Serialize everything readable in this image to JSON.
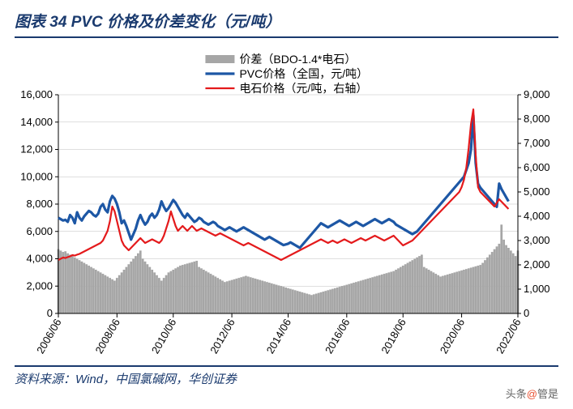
{
  "title": "图表 34   PVC 价格及价差变化（元/吨）",
  "source": "资料来源：Wind，中国氯碱网，华创证券",
  "attribution_prefix": "头条",
  "attribution_at": "@",
  "attribution_name": "管是",
  "chart": {
    "type": "line+bar-dual-axis",
    "background_color": "#ffffff",
    "plot_border_color": "#000000",
    "plot_border_width": 1,
    "grid_color": "#bfbfbf",
    "grid_width": 0.6,
    "x_categories": [
      "2006/06",
      "2008/06",
      "2010/06",
      "2012/06",
      "2014/06",
      "2016/06",
      "2018/06",
      "2020/06",
      "2022/06"
    ],
    "x_tick_rotate": -60,
    "x_fontsize": 13,
    "y_left": {
      "min": 0,
      "max": 16000,
      "step": 2000,
      "fontsize": 13
    },
    "y_right": {
      "min": 0,
      "max": 9000,
      "step": 1000,
      "fontsize": 13
    },
    "legend": {
      "position": "top-center",
      "fontsize": 14,
      "items": [
        {
          "label": "价差（BDO-1.4*电石）",
          "type": "bar",
          "color": "#a6a6a6"
        },
        {
          "label": "PVC价格（全国，元/吨）",
          "type": "line",
          "color": "#1d57a5",
          "width": 3.2
        },
        {
          "label": "电石价格（元/吨，右轴）",
          "type": "line",
          "color": "#e41a1c",
          "width": 2.2
        }
      ]
    },
    "series_bar": {
      "name": "价差",
      "axis": "left",
      "color": "#a6a6a6",
      "data": [
        4700,
        4600,
        4500,
        4550,
        4400,
        4300,
        4200,
        4100,
        4000,
        3900,
        3800,
        3700,
        3600,
        3500,
        3400,
        3300,
        3200,
        3100,
        3000,
        2900,
        2800,
        2700,
        2600,
        2500,
        2400,
        2600,
        2800,
        3000,
        3200,
        3400,
        3600,
        3800,
        4000,
        4200,
        4400,
        4600,
        4000,
        3800,
        3600,
        3400,
        3200,
        3000,
        2800,
        2600,
        2400,
        2600,
        2800,
        3000,
        3100,
        3200,
        3300,
        3400,
        3500,
        3550,
        3600,
        3650,
        3700,
        3750,
        3800,
        3850,
        3400,
        3300,
        3200,
        3100,
        3000,
        2900,
        2800,
        2700,
        2600,
        2500,
        2400,
        2300,
        2350,
        2400,
        2450,
        2500,
        2550,
        2600,
        2650,
        2700,
        2750,
        2700,
        2650,
        2600,
        2550,
        2500,
        2450,
        2400,
        2350,
        2300,
        2250,
        2200,
        2150,
        2100,
        2050,
        2000,
        1950,
        1900,
        1850,
        1800,
        1750,
        1700,
        1650,
        1600,
        1550,
        1500,
        1450,
        1400,
        1350,
        1400,
        1450,
        1500,
        1550,
        1600,
        1650,
        1700,
        1750,
        1800,
        1850,
        1900,
        1950,
        2000,
        2050,
        2100,
        2150,
        2200,
        2250,
        2300,
        2350,
        2400,
        2450,
        2500,
        2550,
        2600,
        2650,
        2700,
        2750,
        2800,
        2850,
        2900,
        2950,
        3000,
        3050,
        3100,
        3200,
        3300,
        3400,
        3500,
        3600,
        3700,
        3800,
        3900,
        4000,
        4100,
        4200,
        4300,
        3400,
        3300,
        3200,
        3100,
        3000,
        2900,
        2800,
        2700,
        2750,
        2800,
        2850,
        2900,
        2950,
        3000,
        3050,
        3100,
        3150,
        3200,
        3250,
        3300,
        3350,
        3400,
        3450,
        3500,
        3550,
        3700,
        3900,
        4100,
        4300,
        4500,
        4700,
        4900,
        5100,
        6500,
        5400,
        5000,
        4800,
        4600,
        4400,
        4200,
        4600
      ]
    },
    "series_line_pvc": {
      "name": "PVC价格",
      "axis": "left",
      "color": "#1d57a5",
      "width": 3.2,
      "data": [
        7000,
        6900,
        6800,
        6850,
        6700,
        7200,
        7000,
        6600,
        7400,
        7000,
        6800,
        7100,
        7300,
        7500,
        7400,
        7200,
        7100,
        7300,
        7800,
        8000,
        7600,
        7400,
        8200,
        8600,
        8400,
        8000,
        7400,
        6600,
        6800,
        6400,
        5900,
        5400,
        5800,
        6200,
        6800,
        7200,
        6800,
        6500,
        6700,
        7100,
        7300,
        7000,
        7200,
        7600,
        8200,
        7800,
        7500,
        7700,
        8000,
        8300,
        8100,
        7800,
        7500,
        7200,
        7000,
        7300,
        7100,
        6900,
        6700,
        6800,
        7000,
        6900,
        6700,
        6600,
        6500,
        6600,
        6700,
        6600,
        6400,
        6300,
        6200,
        6100,
        6200,
        6300,
        6200,
        6100,
        6000,
        6100,
        6200,
        6300,
        6200,
        6100,
        6000,
        5900,
        5800,
        5700,
        5600,
        5500,
        5400,
        5500,
        5600,
        5500,
        5400,
        5300,
        5200,
        5100,
        5000,
        5050,
        5100,
        5200,
        5100,
        5000,
        4900,
        4800,
        5000,
        5200,
        5400,
        5600,
        5800,
        6000,
        6200,
        6400,
        6600,
        6500,
        6400,
        6300,
        6400,
        6500,
        6600,
        6700,
        6800,
        6700,
        6600,
        6500,
        6400,
        6500,
        6600,
        6700,
        6600,
        6500,
        6400,
        6500,
        6600,
        6700,
        6800,
        6900,
        6800,
        6700,
        6600,
        6700,
        6800,
        6900,
        6800,
        6700,
        6500,
        6400,
        6300,
        6200,
        6100,
        6000,
        5900,
        5800,
        5900,
        6000,
        6200,
        6400,
        6600,
        6800,
        7000,
        7200,
        7400,
        7600,
        7800,
        8000,
        8200,
        8400,
        8600,
        8800,
        9000,
        9200,
        9400,
        9600,
        9800,
        10000,
        10500,
        11000,
        12000,
        14500,
        11000,
        9500,
        9200,
        9000,
        8800,
        8600,
        8400,
        8200,
        8000,
        7800,
        9500,
        9100,
        8800,
        8500,
        8200
      ]
    },
    "series_line_cac2": {
      "name": "电石价格",
      "axis": "right",
      "color": "#e41a1c",
      "width": 2.2,
      "data": [
        2200,
        2250,
        2300,
        2280,
        2320,
        2350,
        2400,
        2380,
        2420,
        2450,
        2500,
        2550,
        2600,
        2650,
        2700,
        2750,
        2800,
        2850,
        2900,
        3000,
        3200,
        3400,
        3800,
        4400,
        4200,
        3800,
        3400,
        3000,
        2800,
        2700,
        2600,
        2700,
        2800,
        2900,
        3000,
        3100,
        3000,
        2900,
        2950,
        3000,
        3050,
        3000,
        2950,
        2900,
        3000,
        3200,
        3500,
        3800,
        4200,
        3900,
        3600,
        3400,
        3500,
        3600,
        3500,
        3400,
        3500,
        3600,
        3500,
        3400,
        3450,
        3500,
        3450,
        3400,
        3350,
        3300,
        3250,
        3200,
        3250,
        3300,
        3250,
        3200,
        3150,
        3100,
        3050,
        3000,
        2950,
        2900,
        2850,
        2800,
        2850,
        2900,
        2850,
        2800,
        2750,
        2700,
        2650,
        2600,
        2550,
        2500,
        2450,
        2400,
        2350,
        2300,
        2250,
        2200,
        2250,
        2300,
        2350,
        2400,
        2450,
        2500,
        2550,
        2600,
        2650,
        2700,
        2750,
        2800,
        2850,
        2900,
        2950,
        3000,
        3050,
        3000,
        2950,
        2900,
        2950,
        3000,
        2950,
        2900,
        2950,
        3000,
        3050,
        3000,
        2950,
        2900,
        2950,
        3000,
        3050,
        3100,
        3050,
        3000,
        3050,
        3100,
        3150,
        3200,
        3150,
        3100,
        3050,
        3000,
        3050,
        3100,
        3150,
        3200,
        3100,
        3000,
        2900,
        2800,
        2850,
        2900,
        2950,
        3000,
        3100,
        3200,
        3300,
        3400,
        3500,
        3600,
        3700,
        3800,
        3900,
        4000,
        4100,
        4200,
        4300,
        4400,
        4500,
        4600,
        4700,
        4800,
        4900,
        5000,
        5200,
        5500,
        6000,
        6800,
        7800,
        8400,
        6500,
        5200,
        5000,
        4900,
        4800,
        4700,
        4600,
        4500,
        4400,
        4550,
        4700,
        4600,
        4500,
        4400,
        4300
      ]
    }
  }
}
